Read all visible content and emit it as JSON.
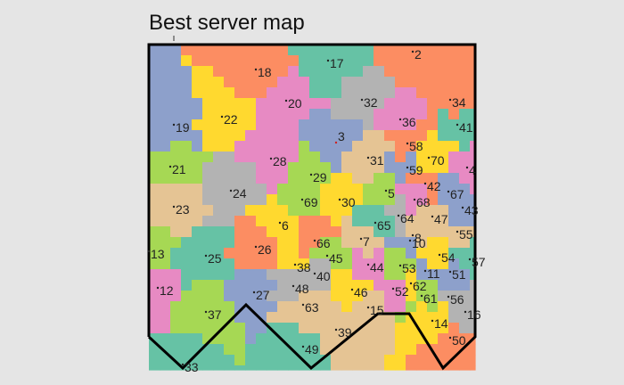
{
  "title": "Best server map",
  "palette": {
    "teal": "#66c2a5",
    "orange": "#fc8d62",
    "blue": "#8da0cb",
    "pink": "#e78ac3",
    "green": "#a6d854",
    "yellow": "#ffd92f",
    "tan": "#e5c494",
    "gray": "#b3b3b3"
  },
  "servers": [
    {
      "id": "2",
      "color": "orange"
    },
    {
      "id": "3",
      "color": "blue"
    },
    {
      "id": "4",
      "color": "pink"
    },
    {
      "id": "5",
      "color": "green"
    },
    {
      "id": "6",
      "color": "yellow"
    },
    {
      "id": "7",
      "color": "tan"
    },
    {
      "id": "8",
      "color": "tan"
    },
    {
      "id": "10",
      "color": "blue"
    },
    {
      "id": "11",
      "color": "blue"
    },
    {
      "id": "12",
      "color": "pink"
    },
    {
      "id": "13",
      "color": "green"
    },
    {
      "id": "14",
      "color": "yellow"
    },
    {
      "id": "15",
      "color": "tan"
    },
    {
      "id": "16",
      "color": "gray"
    },
    {
      "id": "17",
      "color": "teal"
    },
    {
      "id": "18",
      "color": "orange"
    },
    {
      "id": "19",
      "color": "blue"
    },
    {
      "id": "20",
      "color": "pink"
    },
    {
      "id": "21",
      "color": "green"
    },
    {
      "id": "22",
      "color": "yellow"
    },
    {
      "id": "23",
      "color": "tan"
    },
    {
      "id": "24",
      "color": "gray"
    },
    {
      "id": "25",
      "color": "teal"
    },
    {
      "id": "26",
      "color": "orange"
    },
    {
      "id": "27",
      "color": "blue"
    },
    {
      "id": "28",
      "color": "pink"
    },
    {
      "id": "29",
      "color": "green"
    },
    {
      "id": "30",
      "color": "yellow"
    },
    {
      "id": "31",
      "color": "tan"
    },
    {
      "id": "32",
      "color": "gray"
    },
    {
      "id": "33",
      "color": "teal"
    },
    {
      "id": "34",
      "color": "orange"
    },
    {
      "id": "36",
      "color": "pink"
    },
    {
      "id": "37",
      "color": "green"
    },
    {
      "id": "38",
      "color": "yellow"
    },
    {
      "id": "39",
      "color": "tan"
    },
    {
      "id": "40",
      "color": "gray"
    },
    {
      "id": "41",
      "color": "teal"
    },
    {
      "id": "42",
      "color": "orange"
    },
    {
      "id": "43",
      "color": "blue"
    },
    {
      "id": "44",
      "color": "pink"
    },
    {
      "id": "45",
      "color": "green"
    },
    {
      "id": "46",
      "color": "yellow"
    },
    {
      "id": "47",
      "color": "tan"
    },
    {
      "id": "48",
      "color": "gray"
    },
    {
      "id": "49",
      "color": "teal"
    },
    {
      "id": "50",
      "color": "orange"
    },
    {
      "id": "51",
      "color": "blue"
    },
    {
      "id": "52",
      "color": "pink"
    },
    {
      "id": "53",
      "color": "green"
    },
    {
      "id": "54",
      "color": "yellow"
    },
    {
      "id": "55",
      "color": "tan"
    },
    {
      "id": "56",
      "color": "gray"
    },
    {
      "id": "57",
      "color": "teal"
    },
    {
      "id": "58",
      "color": "orange"
    },
    {
      "id": "59",
      "color": "blue"
    },
    {
      "id": "61",
      "color": "green"
    },
    {
      "id": "62",
      "color": "yellow"
    },
    {
      "id": "63",
      "color": "tan"
    },
    {
      "id": "64",
      "color": "gray"
    },
    {
      "id": "65",
      "color": "teal"
    },
    {
      "id": "66",
      "color": "orange"
    },
    {
      "id": "67",
      "color": "blue"
    },
    {
      "id": "68",
      "color": "pink"
    },
    {
      "id": "69",
      "color": "green"
    },
    {
      "id": "70",
      "color": "yellow"
    }
  ]
}
